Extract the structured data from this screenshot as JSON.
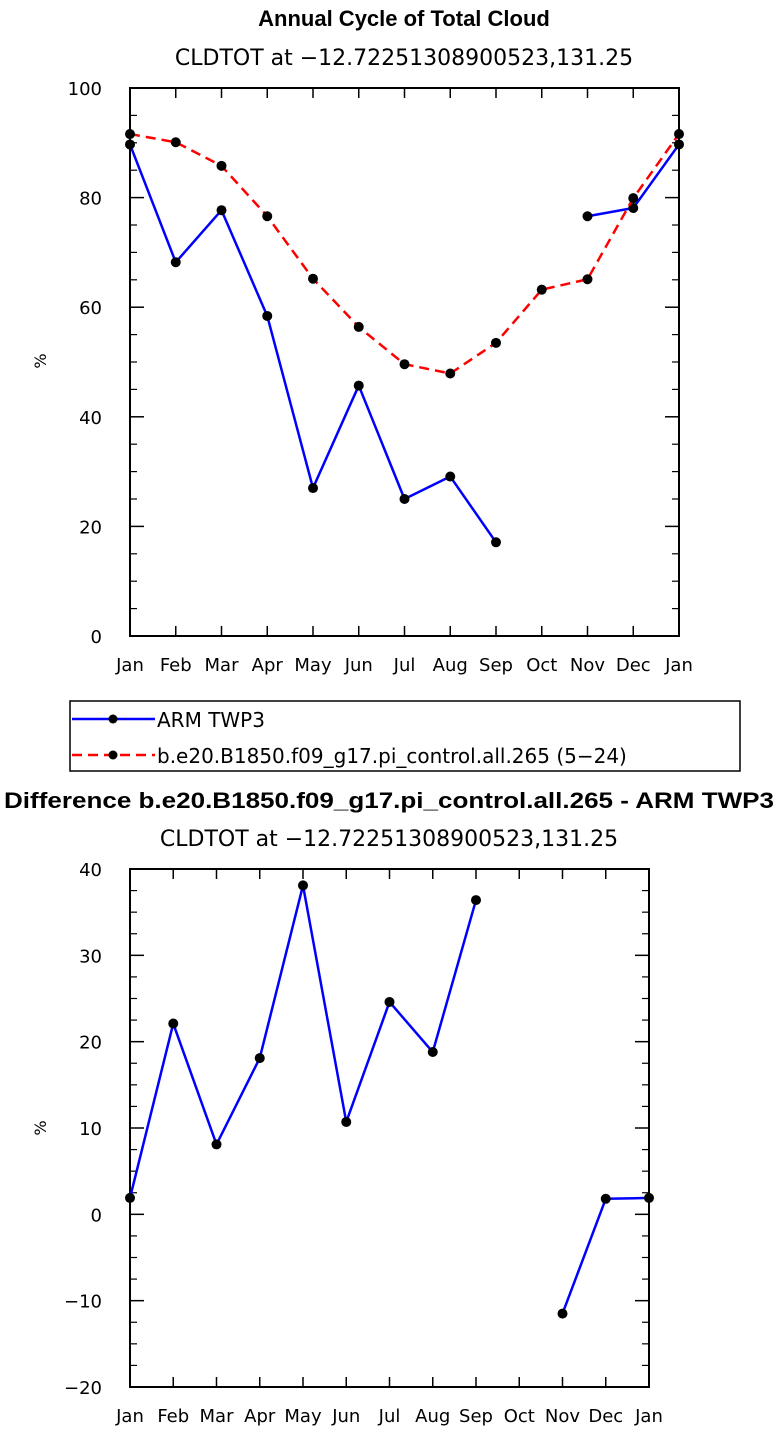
{
  "chart_data": [
    {
      "type": "line",
      "title": "Annual Cycle of Total Cloud",
      "subtitle": "CLDTOT at −12.72251308900523,131.25",
      "xlabel": "",
      "ylabel": "%",
      "categories": [
        "Jan",
        "Feb",
        "Mar",
        "Apr",
        "May",
        "Jun",
        "Jul",
        "Aug",
        "Sep",
        "Oct",
        "Nov",
        "Dec",
        "Jan"
      ],
      "ylim": [
        0,
        100
      ],
      "yticks": [
        "0",
        "20",
        "40",
        "60",
        "80",
        "100"
      ],
      "ytick_values": [
        0,
        20,
        40,
        60,
        80,
        100
      ],
      "series": [
        {
          "name": "ARM TWP3",
          "color": "#0000ff",
          "dash": "solid",
          "values": [
            89.7,
            68.2,
            77.7,
            58.4,
            27.0,
            45.7,
            25.0,
            29.1,
            17.1,
            null,
            76.6,
            78.1,
            89.7
          ]
        },
        {
          "name": "b.e20.B1850.f09_g17.pi_control.all.265 (5−24)",
          "color": "#ff0000",
          "dash": "dashed",
          "values": [
            91.6,
            90.1,
            85.8,
            76.6,
            65.2,
            56.4,
            49.6,
            47.9,
            53.5,
            63.2,
            65.1,
            79.9,
            91.6
          ]
        }
      ],
      "legend": {
        "placement": "below"
      }
    },
    {
      "type": "line",
      "title": "Difference b.e20.B1850.f09_g17.pi_control.all.265 - ARM TWP3",
      "subtitle": "CLDTOT at −12.72251308900523,131.25",
      "xlabel": "",
      "ylabel": "%",
      "categories": [
        "Jan",
        "Feb",
        "Mar",
        "Apr",
        "May",
        "Jun",
        "Jul",
        "Aug",
        "Sep",
        "Oct",
        "Nov",
        "Dec",
        "Jan"
      ],
      "ylim": [
        -20,
        40
      ],
      "yticks": [
        "−20",
        "−10",
        "0",
        "10",
        "20",
        "30",
        "40"
      ],
      "ytick_values": [
        -20,
        -10,
        0,
        10,
        20,
        30,
        40
      ],
      "series": [
        {
          "name": "Difference",
          "color": "#0000ff",
          "dash": "solid",
          "values": [
            1.9,
            22.1,
            8.1,
            18.1,
            38.1,
            10.7,
            24.6,
            18.8,
            36.4,
            null,
            -11.5,
            1.8,
            1.9
          ]
        }
      ]
    }
  ]
}
